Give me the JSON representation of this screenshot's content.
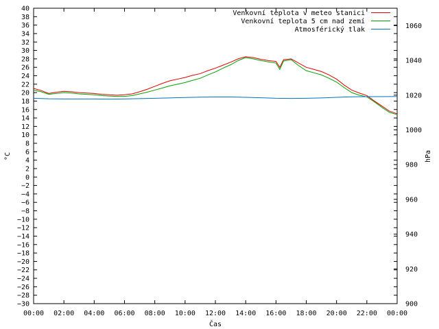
{
  "chart_data": {
    "type": "line",
    "xlabel": "Čas",
    "ylabel": "°C",
    "y2label": "hPa",
    "x_ticks": [
      "00:00",
      "02:00",
      "04:00",
      "06:00",
      "08:00",
      "10:00",
      "12:00",
      "14:00",
      "16:00",
      "18:00",
      "20:00",
      "22:00",
      "00:00"
    ],
    "y_ticks": [
      40,
      38,
      36,
      34,
      32,
      30,
      28,
      26,
      24,
      22,
      20,
      18,
      16,
      14,
      12,
      10,
      8,
      6,
      4,
      2,
      0,
      -2,
      -4,
      -6,
      -8,
      -10,
      -12,
      -14,
      -16,
      -18,
      -20,
      -22,
      -24,
      -26,
      -28,
      -30
    ],
    "y_tick_labels": [
      "40",
      "38",
      "36",
      "34",
      "32",
      "30",
      "28",
      "26",
      "24",
      "22",
      "20",
      "18",
      "16",
      "14",
      "12",
      "10",
      "8",
      "6",
      "4",
      "2",
      "0",
      "−2",
      "−4",
      "−6",
      "−8",
      "−10",
      "−12",
      "−14",
      "−16",
      "−18",
      "−20",
      "−22",
      "−24",
      "−26",
      "−28",
      "−30"
    ],
    "y2_ticks": [
      1060,
      1040,
      1020,
      1000,
      980,
      960,
      940,
      920,
      900
    ],
    "xlim": [
      0,
      24
    ],
    "ylim": [
      -30,
      40
    ],
    "y2lim": [
      900,
      1070
    ],
    "grid": false,
    "legend_position": "top-right",
    "series": [
      {
        "name": "Venkovní teplota v meteo stanici",
        "color": "#e00000",
        "axis": "left",
        "x": [
          0,
          0.5,
          1,
          1.5,
          2,
          2.5,
          3,
          3.5,
          4,
          4.5,
          5,
          5.5,
          6,
          6.5,
          7,
          7.5,
          8,
          8.5,
          9,
          9.5,
          10,
          10.5,
          11,
          11.5,
          12,
          12.5,
          13,
          13.5,
          14,
          14.5,
          15,
          15.5,
          16,
          16.25,
          16.5,
          17,
          17.5,
          18,
          18.5,
          19,
          19.5,
          20,
          20.5,
          21,
          21.5,
          22,
          22.5,
          23,
          23.5,
          24
        ],
        "values": [
          21,
          20.5,
          19.8,
          20.1,
          20.3,
          20.2,
          20.0,
          19.9,
          19.8,
          19.6,
          19.5,
          19.4,
          19.5,
          19.7,
          20.2,
          20.8,
          21.5,
          22.2,
          22.8,
          23.2,
          23.6,
          24.1,
          24.5,
          25.2,
          25.8,
          26.5,
          27.2,
          28.0,
          28.5,
          28.3,
          27.9,
          27.6,
          27.4,
          26.0,
          27.8,
          28.0,
          27.0,
          26.0,
          25.5,
          25.0,
          24.2,
          23.2,
          21.8,
          20.6,
          19.9,
          19.3,
          18.0,
          16.8,
          15.6,
          15.0
        ]
      },
      {
        "name": "Venkovní teplota 5 cm nad zemí",
        "color": "#00a000",
        "axis": "left",
        "x": [
          0,
          0.5,
          1,
          1.5,
          2,
          2.5,
          3,
          3.5,
          4,
          4.5,
          5,
          5.5,
          6,
          6.5,
          7,
          7.5,
          8,
          8.5,
          9,
          9.5,
          10,
          10.5,
          11,
          11.5,
          12,
          12.5,
          13,
          13.5,
          14,
          14.5,
          15,
          15.5,
          16,
          16.25,
          16.5,
          17,
          17.5,
          18,
          18.5,
          19,
          19.5,
          20,
          20.5,
          21,
          21.5,
          22,
          22.5,
          23,
          23.5,
          24
        ],
        "values": [
          20.6,
          20.2,
          19.6,
          19.8,
          20.0,
          19.9,
          19.7,
          19.6,
          19.5,
          19.3,
          19.2,
          19.1,
          19.1,
          19.3,
          19.7,
          20.1,
          20.6,
          21.1,
          21.6,
          22.0,
          22.4,
          22.9,
          23.4,
          24.2,
          24.9,
          25.8,
          26.6,
          27.6,
          28.3,
          28.0,
          27.6,
          27.3,
          27.0,
          25.5,
          27.5,
          27.8,
          26.4,
          25.2,
          24.7,
          24.2,
          23.4,
          22.5,
          21.2,
          20.0,
          19.4,
          19.0,
          17.8,
          16.5,
          15.3,
          14.8
        ]
      },
      {
        "name": "Atmosférický tlak",
        "color": "#0070c0",
        "axis": "right",
        "x": [
          0,
          1,
          2,
          3,
          4,
          5,
          6,
          7,
          8,
          9,
          10,
          11,
          12,
          13,
          14,
          15,
          16,
          17,
          18,
          19,
          20,
          21,
          22,
          23,
          24
        ],
        "values": [
          1018.2,
          1017.9,
          1017.8,
          1017.8,
          1017.8,
          1017.7,
          1017.8,
          1018.0,
          1018.2,
          1018.4,
          1018.6,
          1018.8,
          1018.9,
          1018.9,
          1018.7,
          1018.5,
          1018.2,
          1018.1,
          1018.2,
          1018.4,
          1018.7,
          1019.0,
          1019.1,
          1019.1,
          1019.2
        ]
      }
    ]
  }
}
